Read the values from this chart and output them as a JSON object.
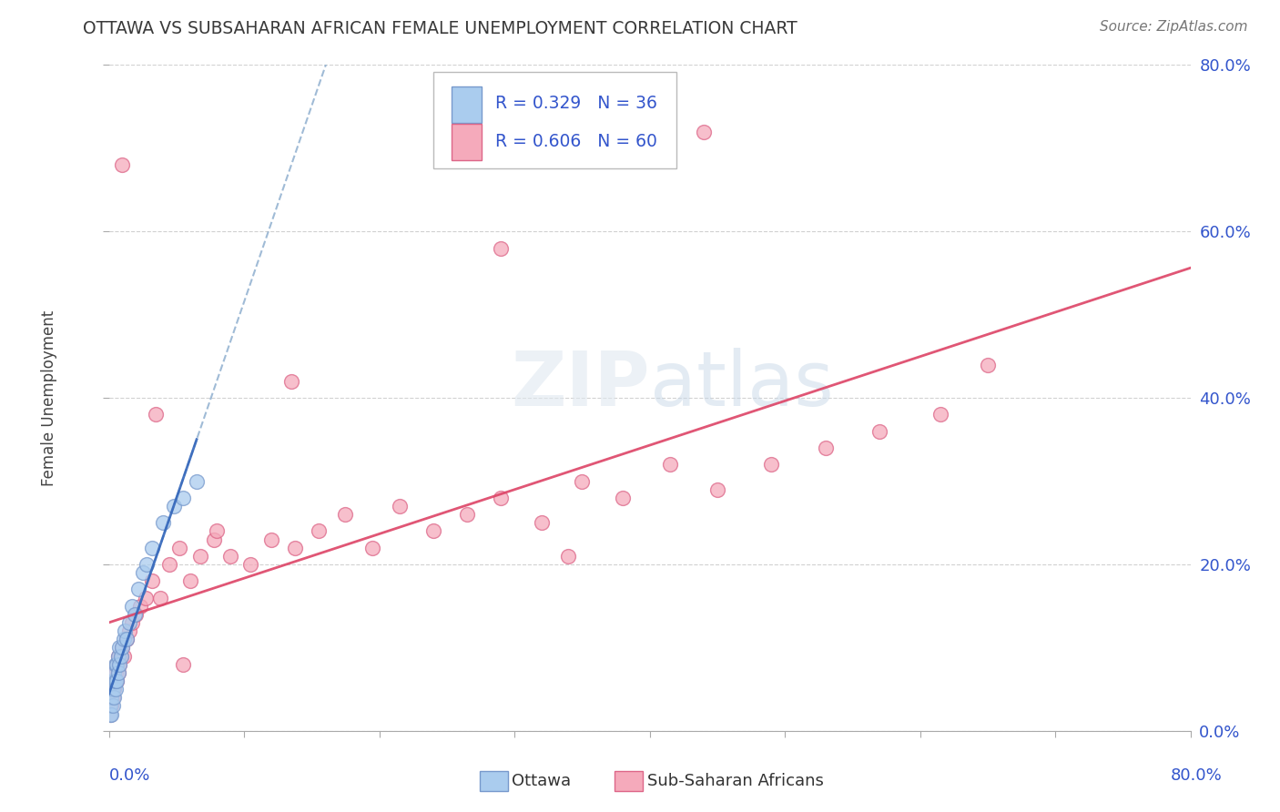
{
  "title": "OTTAWA VS SUBSAHARAN AFRICAN FEMALE UNEMPLOYMENT CORRELATION CHART",
  "source": "Source: ZipAtlas.com",
  "ylabel": "Female Unemployment",
  "legend_r1": "R = 0.329",
  "legend_n1": "N = 36",
  "legend_r2": "R = 0.606",
  "legend_n2": "N = 60",
  "watermark": "ZIPatlas",
  "title_color": "#3a3a3a",
  "source_color": "#777777",
  "ottawa_color": "#aaccee",
  "ottawa_edge": "#7799cc",
  "subsaharan_color": "#f5aabb",
  "subsaharan_edge": "#dd6688",
  "trend_ottawa_solid_color": "#3366bb",
  "trend_ottawa_dash_color": "#88aacc",
  "trend_sub_color": "#dd4466",
  "grid_color": "#cccccc",
  "legend_color": "#3355cc",
  "yaxis_label_color": "#3355cc",
  "xlim": [
    0.0,
    0.8
  ],
  "ylim": [
    0.0,
    0.8
  ],
  "yticks": [
    0.0,
    0.2,
    0.4,
    0.6,
    0.8
  ],
  "ytick_labels": [
    "0.0%",
    "20.0%",
    "40.0%",
    "60.0%",
    "80.0%"
  ],
  "figsize": [
    14.06,
    8.92
  ],
  "dpi": 100,
  "ottawa_x": [
    0.001,
    0.001,
    0.002,
    0.002,
    0.002,
    0.003,
    0.003,
    0.003,
    0.004,
    0.004,
    0.004,
    0.005,
    0.005,
    0.005,
    0.006,
    0.006,
    0.007,
    0.007,
    0.008,
    0.008,
    0.009,
    0.01,
    0.011,
    0.012,
    0.013,
    0.015,
    0.017,
    0.019,
    0.022,
    0.025,
    0.028,
    0.032,
    0.04,
    0.048,
    0.055,
    0.065
  ],
  "ottawa_y": [
    0.02,
    0.03,
    0.02,
    0.04,
    0.05,
    0.03,
    0.05,
    0.06,
    0.04,
    0.06,
    0.07,
    0.05,
    0.06,
    0.08,
    0.06,
    0.08,
    0.07,
    0.09,
    0.08,
    0.1,
    0.09,
    0.1,
    0.11,
    0.12,
    0.11,
    0.13,
    0.15,
    0.14,
    0.17,
    0.19,
    0.2,
    0.22,
    0.25,
    0.27,
    0.28,
    0.3
  ],
  "sub_x": [
    0.001,
    0.001,
    0.002,
    0.002,
    0.002,
    0.003,
    0.003,
    0.004,
    0.004,
    0.005,
    0.005,
    0.006,
    0.006,
    0.007,
    0.007,
    0.008,
    0.009,
    0.01,
    0.011,
    0.013,
    0.015,
    0.017,
    0.02,
    0.023,
    0.027,
    0.032,
    0.038,
    0.045,
    0.052,
    0.06,
    0.068,
    0.078,
    0.09,
    0.105,
    0.12,
    0.138,
    0.155,
    0.175,
    0.195,
    0.215,
    0.24,
    0.265,
    0.29,
    0.32,
    0.35,
    0.38,
    0.415,
    0.45,
    0.49,
    0.53,
    0.57,
    0.615,
    0.65,
    0.34,
    0.29,
    0.135,
    0.08,
    0.055,
    0.035,
    0.01
  ],
  "sub_y": [
    0.02,
    0.03,
    0.03,
    0.04,
    0.05,
    0.04,
    0.06,
    0.05,
    0.06,
    0.06,
    0.07,
    0.06,
    0.08,
    0.07,
    0.09,
    0.08,
    0.09,
    0.1,
    0.09,
    0.11,
    0.12,
    0.13,
    0.14,
    0.15,
    0.16,
    0.18,
    0.16,
    0.2,
    0.22,
    0.18,
    0.21,
    0.23,
    0.21,
    0.2,
    0.23,
    0.22,
    0.24,
    0.26,
    0.22,
    0.27,
    0.24,
    0.26,
    0.28,
    0.25,
    0.3,
    0.28,
    0.32,
    0.29,
    0.32,
    0.34,
    0.36,
    0.38,
    0.44,
    0.21,
    0.58,
    0.42,
    0.24,
    0.08,
    0.38,
    0.68
  ],
  "sub_outlier_x": [
    0.44
  ],
  "sub_outlier_y": [
    0.72
  ]
}
